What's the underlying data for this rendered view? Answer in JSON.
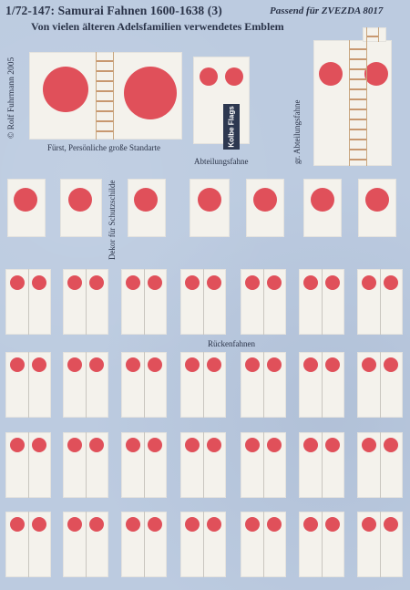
{
  "header": {
    "title": "1/72-147: Samurai Fahnen 1600-1638 (3)",
    "subtitle": "Von vielen älteren Adelsfamilien verwendetes Emblem",
    "compatibility": "Passend für ZVEZDA 8017"
  },
  "copyright": "© Rolf Fuhrmann 2005",
  "logo": "Kolbe Flags",
  "captions": {
    "fuersten_standarte": "Fürst, Persönliche große Standarte",
    "abteilungsfahne": "Abteilungsfahne",
    "gr_abteilungsfahne": "gr. Abteilungsfahne",
    "dekor_schutzschilde": "Dekor für Schutzschilde",
    "rueckenfahnen": "Rückenfahnen"
  },
  "colors": {
    "background": "#bccbe0",
    "flag_white": "#f4f2ec",
    "sun_red": "#e0505a",
    "text": "#2a3348"
  }
}
